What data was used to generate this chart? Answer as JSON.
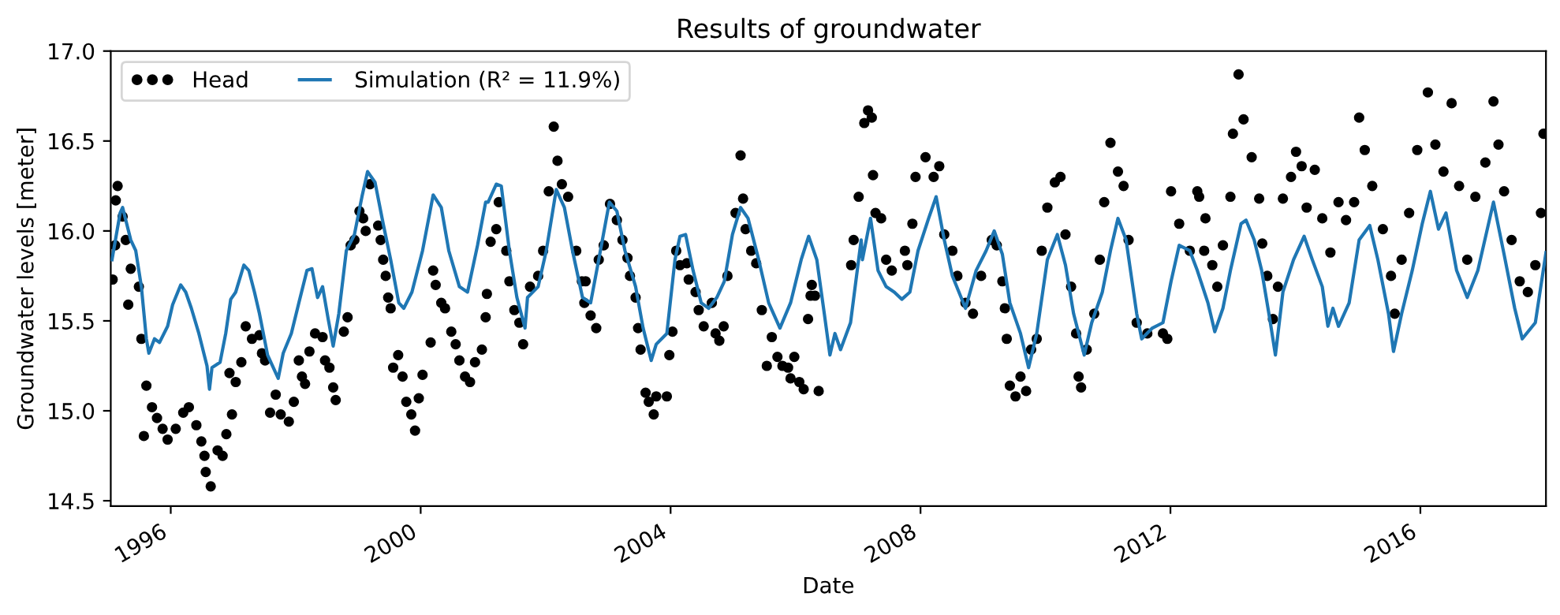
{
  "chart_data": {
    "type": "line",
    "title": "Results of groundwater",
    "xlabel": "Date",
    "ylabel": "Groundwater levels [meter]",
    "xlim": [
      1995.04,
      2018.01
    ],
    "xticks": [
      1996,
      2000,
      2004,
      2008,
      2012,
      2016
    ],
    "ylim": [
      14.47,
      17.0
    ],
    "yticks": [
      14.5,
      {
        "value": 15,
        "label": "15.0"
      },
      15.5,
      {
        "value": 16,
        "label": "16.0"
      },
      16.5,
      {
        "value": 17,
        "label": "17.0"
      }
    ],
    "grid": false,
    "legend": "top left",
    "series": [
      {
        "name": "Head",
        "type": "scatter",
        "marker": "circle",
        "color": "#000000",
        "x": [
          1995.07,
          1995.11,
          1995.15,
          1995.12,
          1995.23,
          1995.28,
          1995.32,
          1995.36,
          1995.49,
          1995.53,
          1995.57,
          1995.61,
          1995.7,
          1995.78,
          1995.87,
          1995.95,
          1996.08,
          1996.2,
          1996.29,
          1996.41,
          1996.49,
          1996.54,
          1996.56,
          1996.64,
          1996.75,
          1996.83,
          1996.89,
          1996.98,
          1996.94,
          1997.04,
          1997.13,
          1997.2,
          1997.3,
          1997.42,
          1997.46,
          1997.51,
          1997.59,
          1997.68,
          1997.76,
          1997.89,
          1997.97,
          1998.05,
          1998.1,
          1998.15,
          1998.22,
          1998.31,
          1998.43,
          1998.47,
          1998.54,
          1998.6,
          1998.64,
          1998.77,
          1998.83,
          1998.88,
          1998.94,
          1999.02,
          1999.08,
          1999.12,
          1999.19,
          1999.32,
          1999.36,
          1999.4,
          1999.44,
          1999.48,
          1999.52,
          1999.56,
          1999.64,
          1999.71,
          1999.77,
          1999.85,
          1999.91,
          1999.97,
          2000.03,
          2000.16,
          2000.2,
          2000.24,
          2000.33,
          2000.39,
          2000.49,
          2000.56,
          2000.62,
          2000.71,
          2000.79,
          2000.87,
          2000.98,
          2001.04,
          2001.06,
          2001.12,
          2001.21,
          2001.25,
          2001.37,
          2001.42,
          2001.5,
          2001.58,
          2001.64,
          2001.75,
          2001.88,
          2001.96,
          2002.05,
          2002.13,
          2002.19,
          2002.26,
          2002.36,
          2002.49,
          2002.58,
          2002.64,
          2002.62,
          2002.72,
          2002.81,
          2002.85,
          2002.93,
          2003.03,
          2003.14,
          2003.23,
          2003.31,
          2003.35,
          2003.44,
          2003.48,
          2003.52,
          2003.6,
          2003.65,
          2003.73,
          2003.77,
          2003.94,
          2003.98,
          2004.03,
          2004.09,
          2004.15,
          2004.26,
          2004.29,
          2004.4,
          2004.45,
          2004.53,
          2004.66,
          2004.72,
          2004.78,
          2004.85,
          2004.91,
          2005.04,
          2005.12,
          2005.16,
          2005.2,
          2005.29,
          2005.37,
          2005.46,
          2005.54,
          2005.62,
          2005.71,
          2005.79,
          2005.88,
          2005.92,
          2005.98,
          2006.06,
          2006.13,
          2006.2,
          2006.24,
          2006.26,
          2006.31,
          2006.37,
          2006.89,
          2006.93,
          2007.01,
          2007.1,
          2007.16,
          2007.22,
          2007.24,
          2007.28,
          2007.37,
          2007.45,
          2007.54,
          2007.75,
          2007.79,
          2007.87,
          2007.92,
          2008.08,
          2008.21,
          2008.3,
          2008.38,
          2008.51,
          2008.59,
          2008.72,
          2008.84,
          2008.97,
          2009.14,
          2009.22,
          2009.31,
          2009.35,
          2009.38,
          2009.43,
          2009.52,
          2009.6,
          2009.69,
          2009.77,
          2009.86,
          2009.94,
          2010.03,
          2010.15,
          2010.24,
          2010.32,
          2010.41,
          2010.49,
          2010.53,
          2010.57,
          2010.66,
          2010.78,
          2010.87,
          2010.94,
          2011.04,
          2011.16,
          2011.25,
          2011.33,
          2011.46,
          2011.63,
          2011.88,
          2011.95,
          2012.01,
          2012.14,
          2012.31,
          2012.43,
          2012.46,
          2012.54,
          2012.56,
          2012.67,
          2012.75,
          2012.84,
          2012.96,
          2013.0,
          2013.09,
          2013.17,
          2013.3,
          2013.42,
          2013.47,
          2013.55,
          2013.64,
          2013.72,
          2013.8,
          2013.93,
          2014.01,
          2014.1,
          2014.18,
          2014.31,
          2014.43,
          2014.56,
          2014.69,
          2014.81,
          2014.94,
          2015.02,
          2015.11,
          2015.23,
          2015.4,
          2015.53,
          2015.59,
          2015.7,
          2015.82,
          2015.95,
          2016.12,
          2016.24,
          2016.37,
          2016.5,
          2016.62,
          2016.75,
          2016.88,
          2017.04,
          2017.17,
          2017.25,
          2017.34,
          2017.46,
          2017.59,
          2017.72,
          2017.84,
          2017.93,
          2017.97
        ],
        "values": [
          15.73,
          15.92,
          16.25,
          16.17,
          16.08,
          15.95,
          15.59,
          15.79,
          15.69,
          15.4,
          14.86,
          15.14,
          15.02,
          14.96,
          14.9,
          14.84,
          14.9,
          14.99,
          15.02,
          14.92,
          14.83,
          14.75,
          14.66,
          14.58,
          14.78,
          14.75,
          14.87,
          14.98,
          15.21,
          15.16,
          15.27,
          15.47,
          15.4,
          15.42,
          15.32,
          15.28,
          14.99,
          15.09,
          14.98,
          14.94,
          15.05,
          15.28,
          15.19,
          15.15,
          15.33,
          15.43,
          15.41,
          15.28,
          15.24,
          15.13,
          15.06,
          15.44,
          15.52,
          15.92,
          15.95,
          16.11,
          16.07,
          16.0,
          16.26,
          16.03,
          15.95,
          15.84,
          15.75,
          15.63,
          15.57,
          15.24,
          15.31,
          15.19,
          15.05,
          14.98,
          14.89,
          15.07,
          15.2,
          15.38,
          15.78,
          15.7,
          15.6,
          15.57,
          15.44,
          15.37,
          15.28,
          15.19,
          15.16,
          15.27,
          15.34,
          15.52,
          15.65,
          15.94,
          16.01,
          16.16,
          15.89,
          15.72,
          15.56,
          15.49,
          15.37,
          15.69,
          15.75,
          15.89,
          16.22,
          16.58,
          16.39,
          16.26,
          16.19,
          15.89,
          15.72,
          15.72,
          15.6,
          15.53,
          15.46,
          15.84,
          15.92,
          16.15,
          16.06,
          15.95,
          15.85,
          15.75,
          15.63,
          15.46,
          15.34,
          15.1,
          15.05,
          14.98,
          15.08,
          15.08,
          15.31,
          15.44,
          15.89,
          15.81,
          15.82,
          15.73,
          15.66,
          15.56,
          15.47,
          15.6,
          15.43,
          15.39,
          15.47,
          15.75,
          16.1,
          16.42,
          16.18,
          16.01,
          15.89,
          15.82,
          15.56,
          15.25,
          15.41,
          15.3,
          15.25,
          15.24,
          15.18,
          15.3,
          15.16,
          15.12,
          15.51,
          15.64,
          15.7,
          15.64,
          15.11,
          15.81,
          15.95,
          16.19,
          16.6,
          16.67,
          16.63,
          16.31,
          16.1,
          16.07,
          15.84,
          15.78,
          15.89,
          15.81,
          16.04,
          16.3,
          16.41,
          16.3,
          16.36,
          15.98,
          15.89,
          15.75,
          15.6,
          15.54,
          15.75,
          15.95,
          15.92,
          15.72,
          15.57,
          15.4,
          15.14,
          15.08,
          15.19,
          15.11,
          15.34,
          15.4,
          15.89,
          16.13,
          16.27,
          16.3,
          15.98,
          15.69,
          15.43,
          15.19,
          15.13,
          15.34,
          15.54,
          15.84,
          16.16,
          16.49,
          16.33,
          16.25,
          15.95,
          15.49,
          15.43,
          15.43,
          15.4,
          16.22,
          16.04,
          15.89,
          16.22,
          16.19,
          15.89,
          16.07,
          15.81,
          15.69,
          15.92,
          16.19,
          16.54,
          16.87,
          16.62,
          16.41,
          16.18,
          15.93,
          15.75,
          15.51,
          15.69,
          16.18,
          16.3,
          16.44,
          16.36,
          16.13,
          16.34,
          16.07,
          15.88,
          16.16,
          16.06,
          16.16,
          16.63,
          16.45,
          16.25,
          16.01,
          15.75,
          15.54,
          15.84,
          16.1,
          16.45,
          16.77,
          16.48,
          16.33,
          16.71,
          16.25,
          15.84,
          16.19,
          16.38,
          16.72,
          16.48,
          16.22,
          15.95,
          15.72,
          15.66,
          15.81,
          16.1,
          16.54
        ]
      },
      {
        "name": "Simulation (R² = 11.9%)",
        "line_style": "solid",
        "color": "#1f77b4",
        "x": [
          1995.06,
          1995.19,
          1995.23,
          1995.36,
          1995.44,
          1995.53,
          1995.61,
          1995.65,
          1995.74,
          1995.82,
          1995.95,
          1996.03,
          1996.16,
          1996.24,
          1996.33,
          1996.45,
          1996.58,
          1996.62,
          1996.66,
          1996.79,
          1996.88,
          1996.96,
          1997.04,
          1997.17,
          1997.25,
          1997.34,
          1997.42,
          1997.55,
          1997.72,
          1997.8,
          1997.93,
          1998.05,
          1998.18,
          1998.26,
          1998.35,
          1998.43,
          1998.52,
          1998.6,
          1998.69,
          1998.81,
          1998.94,
          1999.06,
          1999.15,
          1999.27,
          1999.4,
          1999.52,
          1999.65,
          1999.73,
          1999.86,
          2000.03,
          2000.2,
          2000.33,
          2000.45,
          2000.62,
          2000.75,
          2000.91,
          2001.04,
          2001.08,
          2001.21,
          2001.29,
          2001.42,
          2001.54,
          2001.67,
          2001.71,
          2001.88,
          2002.01,
          2002.17,
          2002.3,
          2002.43,
          2002.59,
          2002.72,
          2002.85,
          2003.02,
          2003.14,
          2003.27,
          2003.44,
          2003.56,
          2003.69,
          2003.77,
          2003.94,
          2004.07,
          2004.15,
          2004.24,
          2004.36,
          2004.49,
          2004.61,
          2004.74,
          2004.86,
          2004.99,
          2005.12,
          2005.24,
          2005.41,
          2005.57,
          2005.75,
          2005.92,
          2006.09,
          2006.21,
          2006.34,
          2006.46,
          2006.55,
          2006.63,
          2006.72,
          2006.88,
          2007.05,
          2007.07,
          2007.2,
          2007.32,
          2007.45,
          2007.58,
          2007.7,
          2007.83,
          2007.96,
          2008.13,
          2008.25,
          2008.38,
          2008.51,
          2008.72,
          2008.89,
          2009.05,
          2009.18,
          2009.31,
          2009.43,
          2009.6,
          2009.73,
          2009.86,
          2010.03,
          2010.19,
          2010.32,
          2010.45,
          2010.62,
          2010.74,
          2010.91,
          2011.04,
          2011.16,
          2011.29,
          2011.46,
          2011.54,
          2011.71,
          2011.88,
          2012.01,
          2012.14,
          2012.31,
          2012.43,
          2012.6,
          2012.71,
          2012.84,
          2012.96,
          2013.13,
          2013.21,
          2013.34,
          2013.46,
          2013.59,
          2013.68,
          2013.8,
          2013.97,
          2014.14,
          2014.27,
          2014.43,
          2014.52,
          2014.6,
          2014.69,
          2014.86,
          2015.02,
          2015.19,
          2015.32,
          2015.49,
          2015.57,
          2015.7,
          2015.87,
          2016.03,
          2016.16,
          2016.29,
          2016.41,
          2016.58,
          2016.75,
          2016.92,
          2017.17,
          2017.34,
          2017.51,
          2017.63,
          2017.84,
          2018.01
        ],
        "values": [
          15.84,
          16.1,
          16.13,
          15.95,
          15.89,
          15.69,
          15.4,
          15.32,
          15.4,
          15.38,
          15.47,
          15.59,
          15.7,
          15.66,
          15.57,
          15.43,
          15.25,
          15.12,
          15.24,
          15.27,
          15.43,
          15.62,
          15.66,
          15.81,
          15.78,
          15.66,
          15.54,
          15.31,
          15.18,
          15.32,
          15.43,
          15.6,
          15.78,
          15.79,
          15.63,
          15.69,
          15.51,
          15.36,
          15.54,
          15.89,
          15.98,
          16.19,
          16.33,
          16.27,
          16.04,
          15.84,
          15.6,
          15.57,
          15.66,
          15.89,
          16.2,
          16.13,
          15.89,
          15.69,
          15.66,
          15.92,
          16.16,
          16.16,
          16.26,
          16.25,
          15.89,
          15.63,
          15.46,
          15.63,
          15.69,
          15.89,
          16.23,
          16.13,
          15.89,
          15.63,
          15.6,
          15.84,
          16.16,
          16.11,
          15.89,
          15.69,
          15.46,
          15.28,
          15.37,
          15.43,
          15.84,
          15.97,
          15.98,
          15.78,
          15.6,
          15.57,
          15.63,
          15.72,
          15.98,
          16.13,
          16.07,
          15.84,
          15.6,
          15.46,
          15.6,
          15.84,
          15.97,
          15.84,
          15.54,
          15.31,
          15.43,
          15.34,
          15.49,
          15.95,
          15.84,
          16.07,
          15.78,
          15.69,
          15.66,
          15.62,
          15.66,
          15.89,
          16.07,
          16.19,
          15.95,
          15.75,
          15.57,
          15.78,
          15.89,
          16.0,
          15.87,
          15.6,
          15.43,
          15.24,
          15.43,
          15.84,
          15.98,
          15.81,
          15.54,
          15.31,
          15.49,
          15.66,
          15.89,
          16.07,
          15.95,
          15.54,
          15.4,
          15.46,
          15.49,
          15.72,
          15.92,
          15.89,
          15.78,
          15.6,
          15.44,
          15.57,
          15.78,
          16.04,
          16.06,
          15.95,
          15.78,
          15.51,
          15.31,
          15.66,
          15.84,
          15.97,
          15.84,
          15.69,
          15.47,
          15.57,
          15.47,
          15.6,
          15.95,
          16.03,
          15.84,
          15.54,
          15.33,
          15.54,
          15.78,
          16.04,
          16.22,
          16.01,
          16.1,
          15.78,
          15.63,
          15.78,
          16.16,
          15.87,
          15.57,
          15.4,
          15.49,
          15.88
        ]
      }
    ]
  }
}
